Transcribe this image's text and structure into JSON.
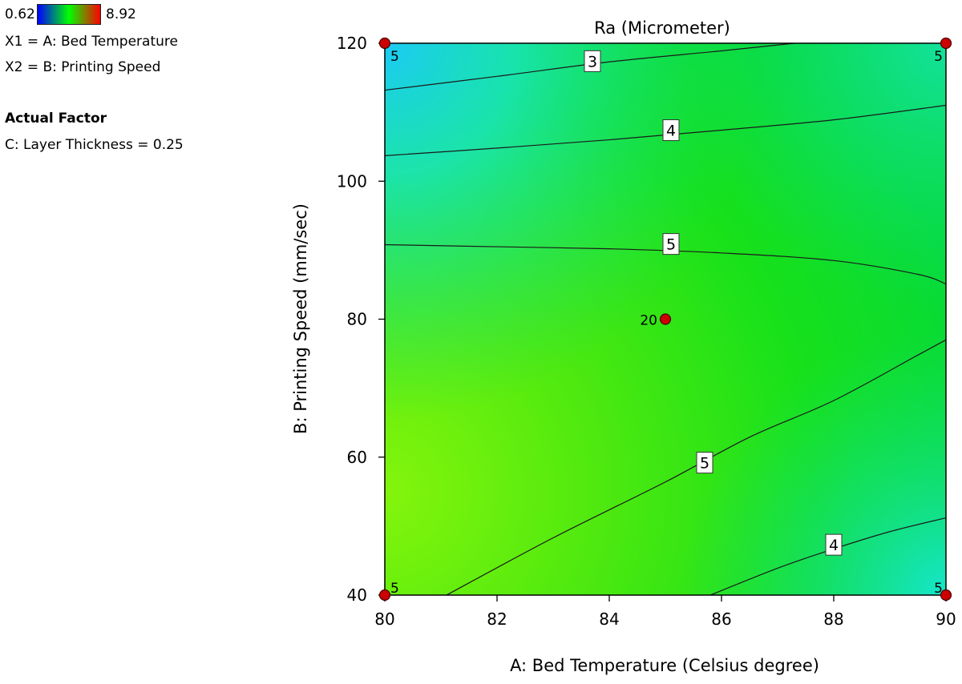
{
  "legend": {
    "scale_min": "0.62",
    "scale_max": "8.92",
    "scale_colors": [
      "#0000ff",
      "#00ff00",
      "#ff0000"
    ],
    "x1": "X1 = A: Bed Temperature",
    "x2": "X2 = B: Printing Speed",
    "actual_factor_title": "Actual Factor",
    "actual_factor": "C: Layer Thickness = 0.25"
  },
  "chart_data": {
    "type": "contour",
    "title": "Ra (Micrometer)",
    "xlabel": "A: Bed Temperature (Celsius degree)",
    "ylabel": "B: Printing Speed (mm/sec)",
    "xlim": [
      80,
      90
    ],
    "ylim": [
      40,
      120
    ],
    "xticks": [
      80,
      82,
      84,
      86,
      88,
      90
    ],
    "yticks": [
      40,
      60,
      80,
      100,
      120
    ],
    "grid": false,
    "contours": [
      {
        "level": 3,
        "label": "3",
        "label_at": [
          83.7,
          117.4
        ],
        "points": [
          [
            80,
            113.2
          ],
          [
            82,
            115.2
          ],
          [
            84,
            117.3
          ],
          [
            86,
            118.9
          ],
          [
            87.3,
            120
          ]
        ]
      },
      {
        "level": 4,
        "label": "4",
        "label_at": [
          85.1,
          107.4
        ],
        "points": [
          [
            80,
            103.7
          ],
          [
            82,
            104.8
          ],
          [
            84,
            106.0
          ],
          [
            86,
            107.4
          ],
          [
            88,
            108.9
          ],
          [
            90,
            111.0
          ]
        ]
      },
      {
        "level": 5,
        "label": "5",
        "label_at": [
          85.1,
          90.9
        ],
        "points": [
          [
            80,
            90.8
          ],
          [
            82,
            90.5
          ],
          [
            84,
            90.2
          ],
          [
            86,
            89.6
          ],
          [
            88,
            88.5
          ],
          [
            89.5,
            86.5
          ],
          [
            90,
            85.1
          ]
        ]
      },
      {
        "level": 5,
        "label": "5",
        "label_at": [
          85.7,
          59.2
        ],
        "points": [
          [
            81.1,
            40
          ],
          [
            83,
            48.3
          ],
          [
            85,
            56.4
          ],
          [
            86.5,
            62.9
          ],
          [
            88,
            68.2
          ],
          [
            89.5,
            74.8
          ],
          [
            90,
            77.0
          ]
        ]
      },
      {
        "level": 4,
        "label": "4",
        "label_at": [
          88.0,
          47.3
        ],
        "points": [
          [
            85.8,
            40
          ],
          [
            87,
            43.9
          ],
          [
            88,
            46.7
          ],
          [
            89,
            49.2
          ],
          [
            90,
            51.2
          ]
        ]
      }
    ],
    "design_points": [
      {
        "x": 80,
        "y": 120,
        "label": "5"
      },
      {
        "x": 90,
        "y": 120,
        "label": "5"
      },
      {
        "x": 80,
        "y": 40,
        "label": "5"
      },
      {
        "x": 90,
        "y": 40,
        "label": "5"
      },
      {
        "x": 85,
        "y": 80,
        "label": "20"
      }
    ],
    "point_color": "#cc0000"
  }
}
